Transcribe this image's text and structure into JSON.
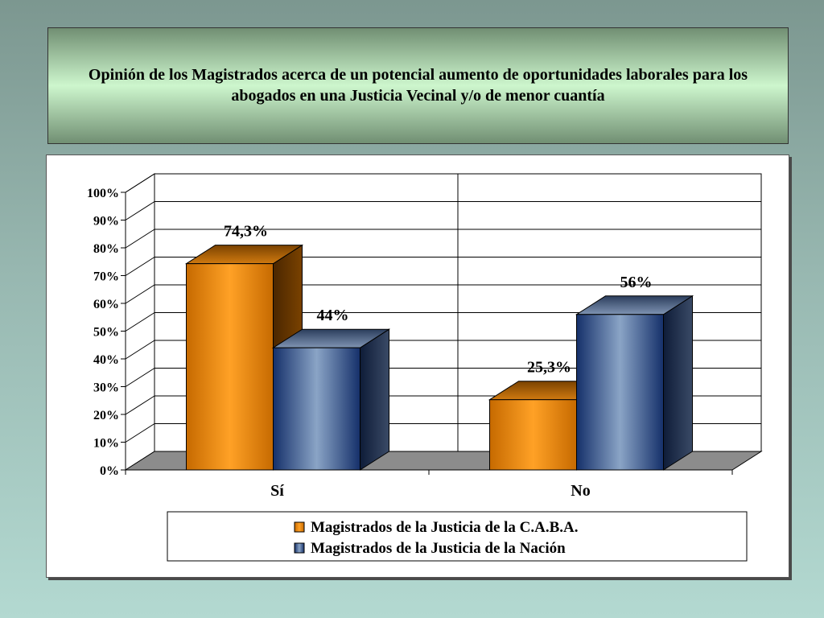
{
  "title": "Opinión de los Magistrados acerca de un potencial aumento de oportunidades laborales para los abogados en una Justicia Vecinal y/o de menor cuantía",
  "chart_data": {
    "type": "bar",
    "style": "3d-clustered-column",
    "categories": [
      "Sí",
      "No"
    ],
    "series": [
      {
        "name": "Magistrados de la Justicia de la C.A.B.A.",
        "values": [
          74.3,
          25.3
        ],
        "labels": [
          "74,3%",
          "25,3%"
        ],
        "color": "#f6900a"
      },
      {
        "name": "Magistrados de la Justicia de la Nación",
        "values": [
          44,
          56
        ],
        "labels": [
          "44%",
          "56%"
        ],
        "color": "#4a6a9a"
      }
    ],
    "yticks": [
      "0%",
      "10%",
      "20%",
      "30%",
      "40%",
      "50%",
      "60%",
      "70%",
      "80%",
      "90%",
      "100%"
    ],
    "ylim": [
      0,
      100
    ],
    "grid": true,
    "legend_position": "bottom"
  }
}
